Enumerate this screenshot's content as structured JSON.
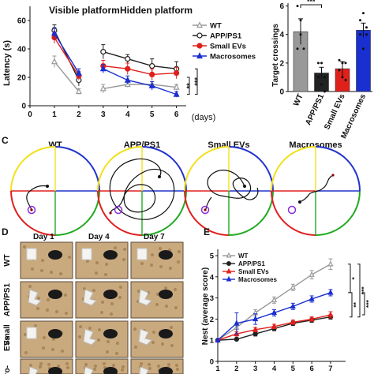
{
  "panel_letters": {
    "c": "C",
    "d": "D",
    "e": "E"
  },
  "colors": {
    "wt": "#999999",
    "app": "#222222",
    "small": "#e0201b",
    "macro": "#1a2fd0",
    "q_yellow": "#f2e01a",
    "q_blue": "#2233cc",
    "q_red": "#e02020",
    "q_green": "#22aa22",
    "target": "#8a2be2"
  },
  "chart_data": [
    {
      "type": "line",
      "panel": "latency",
      "title": "",
      "phase_labels": [
        "Visible platform",
        "Hidden platform"
      ],
      "xlabel": "(days)",
      "ylabel": "Latency (s)",
      "x_ticks": [
        "0",
        "1",
        "2",
        "3",
        "4",
        "5",
        "6"
      ],
      "y_ticks": [
        "0",
        "20",
        "40",
        "60"
      ],
      "xlim": [
        0,
        6.4
      ],
      "ylim": [
        0,
        70
      ],
      "segments": [
        [
          1,
          2
        ],
        [
          3,
          6
        ]
      ],
      "x": [
        1,
        2,
        3,
        4,
        5,
        6
      ],
      "series": [
        {
          "name": "WT",
          "key": "wt",
          "marker": "triangle-open",
          "values": [
            31,
            10,
            12,
            15,
            15,
            13
          ],
          "errors": [
            4,
            2,
            3,
            2,
            2,
            2
          ]
        },
        {
          "name": "APP/PS1",
          "key": "app",
          "marker": "circle-open",
          "values": [
            53,
            18,
            38,
            33,
            28,
            26
          ],
          "errors": [
            4,
            4,
            5,
            3,
            5,
            5
          ]
        },
        {
          "name": "Small EVs",
          "key": "small",
          "marker": "circle",
          "values": [
            48,
            21,
            28,
            26,
            22,
            23
          ],
          "errors": [
            4,
            3,
            4,
            4,
            4,
            4
          ]
        },
        {
          "name": "Macrosomes",
          "key": "macro",
          "marker": "triangle",
          "values": [
            51,
            23,
            26,
            18,
            14,
            8
          ],
          "errors": [
            4,
            3,
            3,
            3,
            3,
            2
          ]
        }
      ],
      "significance": [
        "**",
        "***"
      ]
    },
    {
      "type": "bar",
      "panel": "target-crossings",
      "ylabel": "Target crossings",
      "y_ticks": [
        "0",
        "2",
        "4",
        "6"
      ],
      "ylim": [
        0,
        6.2
      ],
      "categories": [
        "WT",
        "APP/PS1",
        "Small EVs",
        "Macrosomes"
      ],
      "values": [
        4.2,
        1.3,
        1.6,
        4.3
      ],
      "errors": [
        0.9,
        0.4,
        0.5,
        0.5
      ],
      "points": [
        [
          6.0,
          5.0,
          3.0,
          3.0,
          4.0
        ],
        [
          2.0,
          2.0,
          1.0,
          1.0,
          0.5,
          0.0
        ],
        [
          2.2,
          2.0,
          2.0,
          1.5,
          1.0,
          0.8
        ],
        [
          5.0,
          5.5,
          4.5,
          4.0,
          3.0,
          4.0
        ]
      ],
      "significance": [
        "***"
      ]
    },
    {
      "type": "line",
      "panel": "nest",
      "xlabel": "",
      "ylabel": "Nest (average score)",
      "x_ticks": [
        "1",
        "2",
        "3",
        "4",
        "5",
        "6",
        "7"
      ],
      "y_ticks": [
        "0",
        "1",
        "2",
        "3",
        "4",
        "5"
      ],
      "xlim": [
        1,
        7.8
      ],
      "ylim": [
        0,
        5.3
      ],
      "x": [
        1,
        2,
        3,
        4,
        5,
        6,
        7
      ],
      "series": [
        {
          "name": "WT",
          "key": "wt",
          "marker": "triangle-open",
          "values": [
            1.0,
            1.6,
            2.3,
            2.9,
            3.5,
            4.1,
            4.6
          ],
          "errors": [
            0,
            0.1,
            0.15,
            0.15,
            0.15,
            0.2,
            0.25
          ]
        },
        {
          "name": "APP/PS1",
          "key": "app",
          "marker": "circle",
          "values": [
            1.0,
            1.05,
            1.3,
            1.55,
            1.8,
            1.95,
            2.1
          ],
          "errors": [
            0,
            0.05,
            0.1,
            0.1,
            0.1,
            0.1,
            0.1
          ]
        },
        {
          "name": "Small EVs",
          "key": "small",
          "marker": "triangle",
          "values": [
            1.0,
            1.3,
            1.5,
            1.65,
            1.85,
            2.0,
            2.2
          ],
          "errors": [
            0,
            0.1,
            0.1,
            0.1,
            0.1,
            0.1,
            0.15
          ]
        },
        {
          "name": "Macrosomes",
          "key": "macro",
          "marker": "triangle",
          "values": [
            1.0,
            1.8,
            2.0,
            2.3,
            2.6,
            2.95,
            3.25
          ],
          "errors": [
            0,
            0.5,
            0.25,
            0.15,
            0.15,
            0.15,
            0.15
          ]
        }
      ],
      "significance": [
        "*",
        "***",
        "**",
        "***"
      ]
    }
  ],
  "swim_paths": {
    "titles": [
      "WT",
      "APP/PS1",
      "Small EVs",
      "Macrosomes"
    ]
  },
  "nest_photos": {
    "days": [
      "Day 1",
      "Day 4",
      "Day 7"
    ],
    "rows": [
      "WT",
      "APP/PS1",
      "Small\nEVs",
      "cro-\nes"
    ]
  }
}
